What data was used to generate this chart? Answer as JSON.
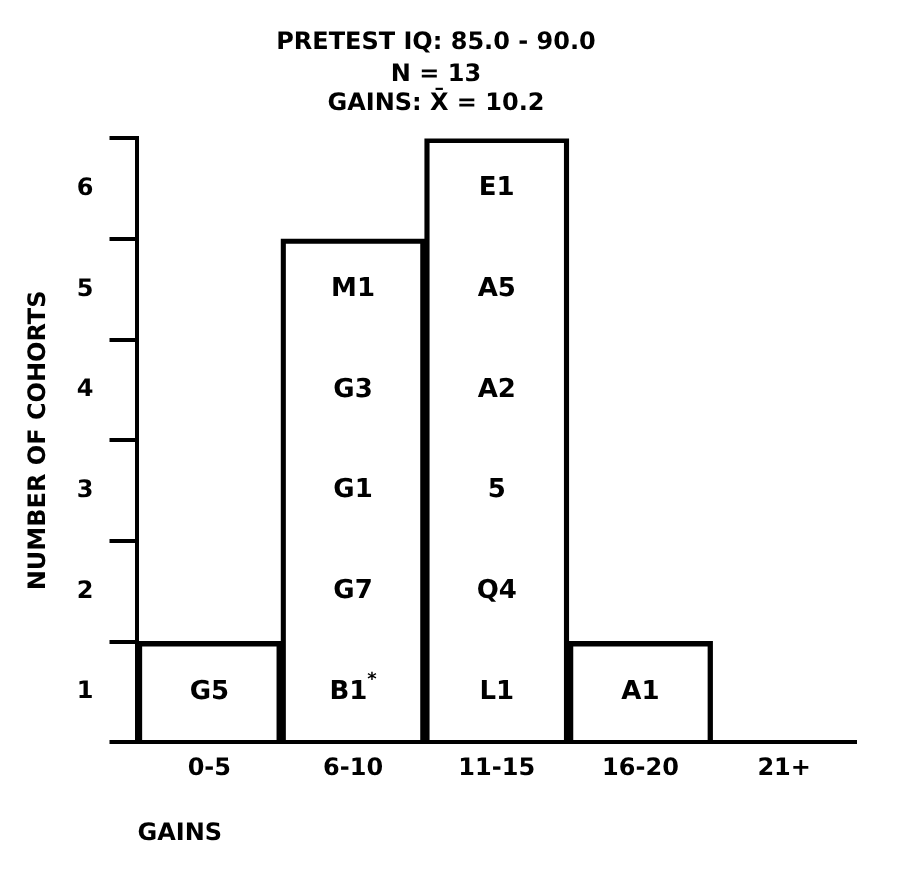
{
  "chart_data": {
    "type": "bar",
    "title": "PRETEST IQ: 85.0 - 90.0",
    "subtitle": [
      "N = 13",
      "GAINS: X̄ = 10.2"
    ],
    "xlabel": "GAINS",
    "ylabel": "NUMBER OF COHORTS",
    "categories": [
      "0-5",
      "6-10",
      "11-15",
      "16-20",
      "21+"
    ],
    "values": [
      1,
      5,
      6,
      1,
      0
    ],
    "color": "#000000",
    "ylim": [
      0,
      6
    ],
    "yticks": [
      {
        "value": 0,
        "label": null
      },
      {
        "value": 0.5,
        "label": "1"
      },
      {
        "value": 1,
        "label": null
      },
      {
        "value": 1.5,
        "label": "2"
      },
      {
        "value": 2,
        "label": null
      },
      {
        "value": 2.5,
        "label": "3"
      },
      {
        "value": 3,
        "label": null
      },
      {
        "value": 3.5,
        "label": "4"
      },
      {
        "value": 4,
        "label": null
      },
      {
        "value": 4.5,
        "label": "5"
      },
      {
        "value": 5,
        "label": null
      },
      {
        "value": 5.5,
        "label": "6"
      },
      {
        "value": 6,
        "label": null
      }
    ],
    "grid": false,
    "legend": false,
    "annotations": [
      "G5",
      "B1$^{*}$",
      "G7",
      "G1",
      "G3",
      "M1",
      "L1",
      "Q4",
      "5",
      "A2",
      "A5",
      "E1",
      "A1"
    ]
  }
}
